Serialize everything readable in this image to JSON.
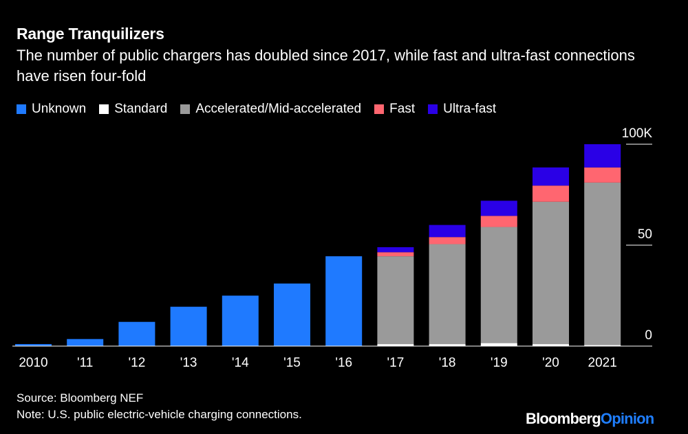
{
  "chart_data": {
    "type": "bar",
    "stacked": true,
    "title": "Range Tranquilizers",
    "subtitle": "The number of public chargers has doubled since 2017, while fast and ultra-fast connections have risen four-fold",
    "categories": [
      "2010",
      "'11",
      "'12",
      "'13",
      "'14",
      "'15",
      "'16",
      "'17",
      "'18",
      "'19",
      "'20",
      "2021"
    ],
    "series": [
      {
        "name": "Unknown",
        "color": "#1f7aff",
        "values": [
          1,
          3.5,
          12,
          19.5,
          25,
          31,
          44.5,
          0,
          0,
          0,
          0,
          0
        ]
      },
      {
        "name": "Standard",
        "color": "#ffffff",
        "values": [
          0,
          0,
          0,
          0,
          0,
          0,
          0,
          1,
          1,
          1.5,
          1,
          0.5
        ]
      },
      {
        "name": "Accelerated/Mid-accelerated",
        "color": "#9a9a9a",
        "values": [
          0,
          0,
          0,
          0,
          0,
          0,
          0,
          43.5,
          49.5,
          57.5,
          70.5,
          80.5
        ]
      },
      {
        "name": "Fast",
        "color": "#ff6670",
        "values": [
          0,
          0,
          0,
          0,
          0,
          0,
          0,
          2,
          3.5,
          5.5,
          8,
          7.5
        ]
      },
      {
        "name": "Ultra-fast",
        "color": "#2a00e6",
        "values": [
          0,
          0,
          0,
          0,
          0,
          0,
          0,
          2.5,
          6,
          7.5,
          9,
          11.5
        ]
      }
    ],
    "ylim": [
      0,
      100
    ],
    "yticks": [
      0,
      50,
      100
    ],
    "ytick_labels": [
      "0",
      "50",
      "100K"
    ],
    "xlabel": "",
    "ylabel": "",
    "legend_position": "top-left"
  },
  "footer": {
    "source": "Source: Bloomberg NEF",
    "note": "Note: U.S. public electric-vehicle charging connections."
  },
  "brand": {
    "name": "Bloomberg",
    "suffix": "Opinion"
  }
}
